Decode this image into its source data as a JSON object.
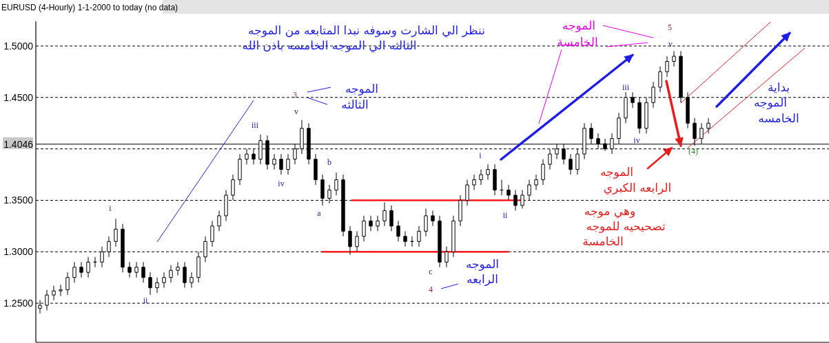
{
  "chart_data": {
    "type": "candlestick",
    "title": "EURUSD (4-Hourly)  1-1-2000 to today  (no data)",
    "categories": [
      null,
      null,
      null,
      null,
      null,
      null,
      null,
      null,
      null,
      null,
      null,
      null,
      null,
      null,
      null,
      null,
      null,
      null,
      null,
      null,
      null,
      null,
      null,
      null,
      null,
      null,
      null,
      null,
      null,
      null,
      null,
      null,
      null,
      null,
      null,
      null,
      null,
      null,
      null,
      null,
      null,
      null,
      null,
      null,
      null,
      null,
      null,
      null,
      null,
      null,
      null,
      null,
      null,
      null,
      null,
      null,
      null,
      null,
      null,
      null,
      null,
      null,
      null,
      null,
      null,
      null,
      null,
      null,
      null,
      null,
      null,
      null,
      null,
      null,
      null,
      null,
      null,
      null,
      null,
      null,
      null,
      null,
      null,
      null,
      null,
      null,
      null,
      null,
      null,
      null,
      null,
      null,
      null,
      null,
      null,
      null,
      null,
      null,
      null,
      null,
      null,
      null,
      null,
      null,
      null,
      null,
      null,
      null,
      null,
      null,
      null,
      null
    ],
    "ohlc": [
      [
        1.245,
        1.253,
        1.24,
        1.248
      ],
      [
        1.248,
        1.263,
        1.243,
        1.258
      ],
      [
        1.258,
        1.267,
        1.253,
        1.262
      ],
      [
        1.262,
        1.268,
        1.257,
        1.263
      ],
      [
        1.263,
        1.28,
        1.258,
        1.275
      ],
      [
        1.275,
        1.29,
        1.27,
        1.285
      ],
      [
        1.285,
        1.29,
        1.275,
        1.28
      ],
      [
        1.28,
        1.295,
        1.275,
        1.29
      ],
      [
        1.29,
        1.295,
        1.285,
        1.29
      ],
      [
        1.29,
        1.305,
        1.285,
        1.3
      ],
      [
        1.3,
        1.315,
        1.295,
        1.31
      ],
      [
        1.31,
        1.332,
        1.305,
        1.322
      ],
      [
        1.322,
        1.327,
        1.28,
        1.285
      ],
      [
        1.285,
        1.29,
        1.275,
        1.28
      ],
      [
        1.28,
        1.29,
        1.275,
        1.285
      ],
      [
        1.285,
        1.29,
        1.27,
        1.275
      ],
      [
        1.275,
        1.28,
        1.258,
        1.265
      ],
      [
        1.265,
        1.275,
        1.26,
        1.27
      ],
      [
        1.27,
        1.28,
        1.265,
        1.275
      ],
      [
        1.275,
        1.287,
        1.27,
        1.282
      ],
      [
        1.282,
        1.29,
        1.277,
        1.285
      ],
      [
        1.285,
        1.29,
        1.265,
        1.27
      ],
      [
        1.27,
        1.28,
        1.265,
        1.275
      ],
      [
        1.275,
        1.3,
        1.27,
        1.295
      ],
      [
        1.295,
        1.315,
        1.29,
        1.31
      ],
      [
        1.31,
        1.33,
        1.305,
        1.325
      ],
      [
        1.325,
        1.34,
        1.32,
        1.335
      ],
      [
        1.335,
        1.36,
        1.33,
        1.355
      ],
      [
        1.355,
        1.375,
        1.35,
        1.37
      ],
      [
        1.37,
        1.395,
        1.365,
        1.39
      ],
      [
        1.39,
        1.4,
        1.385,
        1.395
      ],
      [
        1.395,
        1.4,
        1.385,
        1.39
      ],
      [
        1.39,
        1.414,
        1.385,
        1.408
      ],
      [
        1.408,
        1.413,
        1.38,
        1.385
      ],
      [
        1.385,
        1.395,
        1.38,
        1.39
      ],
      [
        1.39,
        1.395,
        1.375,
        1.38
      ],
      [
        1.38,
        1.395,
        1.375,
        1.39
      ],
      [
        1.39,
        1.405,
        1.385,
        1.4
      ],
      [
        1.4,
        1.428,
        1.395,
        1.42
      ],
      [
        1.42,
        1.425,
        1.385,
        1.39
      ],
      [
        1.39,
        1.395,
        1.365,
        1.37
      ],
      [
        1.37,
        1.375,
        1.345,
        1.352
      ],
      [
        1.352,
        1.365,
        1.347,
        1.36
      ],
      [
        1.36,
        1.377,
        1.355,
        1.37
      ],
      [
        1.37,
        1.375,
        1.315,
        1.32
      ],
      [
        1.32,
        1.325,
        1.297,
        1.305
      ],
      [
        1.305,
        1.32,
        1.3,
        1.315
      ],
      [
        1.315,
        1.335,
        1.31,
        1.33
      ],
      [
        1.33,
        1.335,
        1.32,
        1.325
      ],
      [
        1.325,
        1.335,
        1.32,
        1.33
      ],
      [
        1.33,
        1.348,
        1.325,
        1.34
      ],
      [
        1.34,
        1.345,
        1.32,
        1.325
      ],
      [
        1.325,
        1.33,
        1.31,
        1.315
      ],
      [
        1.315,
        1.32,
        1.305,
        1.31
      ],
      [
        1.31,
        1.315,
        1.305,
        1.31
      ],
      [
        1.31,
        1.325,
        1.305,
        1.32
      ],
      [
        1.32,
        1.342,
        1.315,
        1.335
      ],
      [
        1.335,
        1.34,
        1.325,
        1.33
      ],
      [
        1.33,
        1.335,
        1.285,
        1.29
      ],
      [
        1.29,
        1.305,
        1.285,
        1.3
      ],
      [
        1.3,
        1.335,
        1.295,
        1.33
      ],
      [
        1.33,
        1.355,
        1.325,
        1.35
      ],
      [
        1.35,
        1.37,
        1.345,
        1.365
      ],
      [
        1.365,
        1.375,
        1.36,
        1.37
      ],
      [
        1.37,
        1.38,
        1.365,
        1.375
      ],
      [
        1.375,
        1.385,
        1.37,
        1.38
      ],
      [
        1.38,
        1.385,
        1.355,
        1.36
      ],
      [
        1.36,
        1.37,
        1.355,
        1.36
      ],
      [
        1.36,
        1.365,
        1.35,
        1.355
      ],
      [
        1.355,
        1.36,
        1.34,
        1.345
      ],
      [
        1.345,
        1.36,
        1.342,
        1.355
      ],
      [
        1.355,
        1.37,
        1.35,
        1.365
      ],
      [
        1.365,
        1.375,
        1.36,
        1.37
      ],
      [
        1.37,
        1.39,
        1.365,
        1.385
      ],
      [
        1.385,
        1.4,
        1.38,
        1.395
      ],
      [
        1.395,
        1.405,
        1.39,
        1.4
      ],
      [
        1.4,
        1.405,
        1.385,
        1.39
      ],
      [
        1.39,
        1.395,
        1.375,
        1.38
      ],
      [
        1.38,
        1.4,
        1.375,
        1.395
      ],
      [
        1.395,
        1.425,
        1.39,
        1.42
      ],
      [
        1.42,
        1.425,
        1.405,
        1.41
      ],
      [
        1.41,
        1.415,
        1.4,
        1.405
      ],
      [
        1.405,
        1.41,
        1.398,
        1.4
      ],
      [
        1.4,
        1.415,
        1.395,
        1.41
      ],
      [
        1.41,
        1.435,
        1.405,
        1.43
      ],
      [
        1.43,
        1.455,
        1.425,
        1.45
      ],
      [
        1.45,
        1.455,
        1.44,
        1.445
      ],
      [
        1.445,
        1.45,
        1.415,
        1.42
      ],
      [
        1.42,
        1.45,
        1.415,
        1.445
      ],
      [
        1.445,
        1.465,
        1.44,
        1.46
      ],
      [
        1.46,
        1.48,
        1.455,
        1.475
      ],
      [
        1.475,
        1.49,
        1.47,
        1.485
      ],
      [
        1.485,
        1.495,
        1.48,
        1.49
      ],
      [
        1.49,
        1.495,
        1.445,
        1.45
      ],
      [
        1.45,
        1.455,
        1.42,
        1.425
      ],
      [
        1.425,
        1.43,
        1.403,
        1.41
      ],
      [
        1.41,
        1.425,
        1.405,
        1.42
      ],
      [
        1.42,
        1.43,
        1.415,
        1.425
      ],
      null,
      null,
      null,
      null,
      null,
      null,
      null,
      null,
      null,
      null,
      null,
      null,
      null,
      null
    ],
    "ylim": [
      1.212,
      1.524
    ],
    "yticks": [
      {
        "value": 1.25,
        "label": "1.2500"
      },
      {
        "value": 1.3,
        "label": "1.3000"
      },
      {
        "value": 1.35,
        "label": "1.3500"
      },
      {
        "value": 1.4,
        "label": null
      },
      {
        "value": 1.45,
        "label": "1.4500"
      },
      {
        "value": 1.5,
        "label": "1.5000"
      }
    ],
    "series": [
      {
        "type": "line",
        "color": "#1e1ee6",
        "values": [
          null,
          null,
          null,
          null,
          null,
          null,
          null,
          null,
          null,
          null,
          null,
          null,
          null,
          null,
          null,
          null,
          null,
          1.3095,
          1.3193,
          1.3292,
          1.339,
          1.3488,
          1.3587,
          1.3685,
          1.3783,
          1.3882,
          1.398,
          1.4078,
          1.4177,
          1.4275,
          1.4373,
          1.4472,
          null,
          null,
          null,
          null,
          null,
          null,
          null,
          null,
          null,
          null,
          null,
          null,
          null,
          null,
          null,
          null,
          null,
          null,
          null,
          null,
          null,
          null,
          null,
          null,
          null,
          null,
          null,
          null,
          null,
          null,
          null,
          null,
          null,
          null,
          null,
          null,
          null,
          null,
          null,
          null,
          null,
          null,
          null,
          null,
          null,
          null,
          null,
          null,
          null,
          null,
          null,
          null,
          null,
          null,
          null,
          null,
          null,
          null,
          null,
          null,
          null,
          null,
          null,
          null,
          null,
          null,
          null,
          null,
          null,
          null,
          null,
          null,
          null,
          null,
          null,
          null,
          null,
          null,
          null,
          null
        ]
      },
      {
        "type": "line",
        "color": "#e61e1e",
        "values": [
          null,
          null,
          null,
          null,
          null,
          null,
          null,
          null,
          null,
          null,
          null,
          null,
          null,
          null,
          null,
          null,
          null,
          null,
          null,
          null,
          null,
          null,
          null,
          null,
          null,
          null,
          null,
          null,
          null,
          null,
          null,
          null,
          null,
          null,
          null,
          null,
          null,
          null,
          null,
          null,
          null,
          null,
          null,
          null,
          null,
          null,
          null,
          null,
          null,
          null,
          null,
          null,
          null,
          null,
          null,
          null,
          null,
          null,
          null,
          null,
          null,
          null,
          null,
          null,
          null,
          null,
          null,
          null,
          null,
          null,
          null,
          null,
          null,
          null,
          null,
          null,
          null,
          null,
          null,
          null,
          null,
          null,
          null,
          null,
          null,
          null,
          null,
          null,
          null,
          null,
          null,
          null,
          null,
          1.4445,
          1.4506,
          1.4566,
          1.4627,
          1.4687,
          1.4748,
          1.4809,
          1.4869,
          1.493,
          1.4991,
          1.5051,
          1.5112,
          1.5172,
          1.5233,
          null,
          null,
          null,
          null,
          null
        ]
      },
      {
        "type": "line",
        "color": "#e61e1e",
        "values": [
          null,
          null,
          null,
          null,
          null,
          null,
          null,
          null,
          null,
          null,
          null,
          null,
          null,
          null,
          null,
          null,
          null,
          null,
          null,
          null,
          null,
          null,
          null,
          null,
          null,
          null,
          null,
          null,
          null,
          null,
          null,
          null,
          null,
          null,
          null,
          null,
          null,
          null,
          null,
          null,
          null,
          null,
          null,
          null,
          null,
          null,
          null,
          null,
          null,
          null,
          null,
          null,
          null,
          null,
          null,
          null,
          null,
          null,
          null,
          null,
          null,
          null,
          null,
          null,
          null,
          null,
          null,
          null,
          null,
          null,
          null,
          null,
          null,
          null,
          null,
          null,
          null,
          null,
          null,
          null,
          null,
          null,
          null,
          null,
          null,
          null,
          null,
          null,
          null,
          null,
          null,
          null,
          null,
          null,
          1.4011,
          1.4068,
          1.4125,
          1.4182,
          1.4239,
          1.4296,
          1.4353,
          1.441,
          1.4467,
          1.4524,
          1.4581,
          1.4638,
          1.4695,
          1.4752,
          1.4809,
          1.4866,
          1.4923,
          1.498
        ]
      }
    ],
    "grid": "y",
    "tick_labels": "y",
    "ref_lines": [
      {
        "axis": "y",
        "value": 1.4046,
        "label": "1.4046",
        "color": "#000000"
      },
      {
        "axis": "y",
        "value": 1.35,
        "color": "#ff0000"
      },
      {
        "axis": "y",
        "value": 1.3,
        "color": "#ff0000"
      }
    ],
    "annotations": [
      "ننظر الي الشارت وسوفه نبدا المتابعه من الموجه",
      "الثالثه  الي الموجه الخامسه باذن الله",
      "الموجه",
      "الثالثه",
      "الموجه",
      "الخامسة",
      "الموجه",
      "الرابعه",
      "الموجه",
      "الرابعه الكبري",
      "وهي موجه",
      "تصحيحيه للموجه",
      "الخامسة",
      "بداية",
      "الموجه",
      "الخامسه",
      "i",
      "ii",
      "iii",
      "iv",
      "v",
      "3",
      "a",
      "b",
      "c",
      "4",
      "i",
      "ii",
      "iii",
      "iv",
      "v",
      "5",
      "(4)"
    ]
  }
}
